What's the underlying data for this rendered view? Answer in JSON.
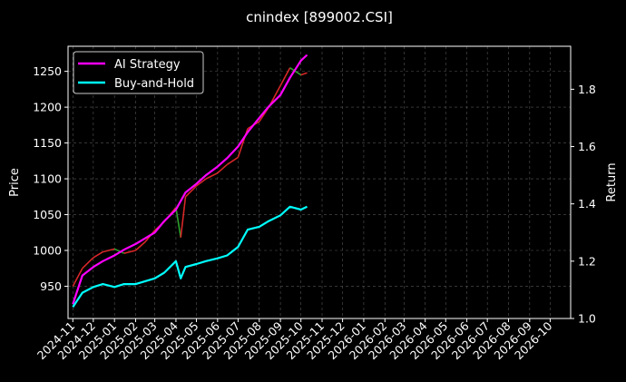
{
  "chart_data": {
    "type": "line",
    "title": "cnindex [899002.CSI]",
    "xlabel": "",
    "ylabel": "Price",
    "y2label": "Return",
    "background": "#000000",
    "grid": true,
    "legend_position": "top-left",
    "xlim": [
      "2024-10-25",
      "2026-10-31"
    ],
    "ylim": [
      905,
      1285
    ],
    "y2lim": [
      1.0,
      1.95
    ],
    "x_ticks": [
      "2024-11",
      "2024-12",
      "2025-01",
      "2025-02",
      "2025-03",
      "2025-04",
      "2025-05",
      "2025-06",
      "2025-07",
      "2025-08",
      "2025-09",
      "2025-10",
      "2025-11",
      "2025-12",
      "2026-01",
      "2026-02",
      "2026-03",
      "2026-04",
      "2026-05",
      "2026-06",
      "2026-07",
      "2026-08",
      "2026-09",
      "2026-10"
    ],
    "y_ticks": [
      950,
      1000,
      1050,
      1100,
      1150,
      1200,
      1250
    ],
    "y2_ticks": [
      "1.0",
      "1.2",
      "1.4",
      "1.6",
      "1.8"
    ],
    "price_series": {
      "name": "Price",
      "up_color": "#d62728",
      "down_color": "#2ca02c",
      "x": [
        "2024-11-01",
        "2024-11-15",
        "2024-12-01",
        "2024-12-15",
        "2025-01-01",
        "2025-01-15",
        "2025-02-01",
        "2025-02-15",
        "2025-03-01",
        "2025-03-15",
        "2025-04-01",
        "2025-04-08",
        "2025-04-15",
        "2025-05-01",
        "2025-05-15",
        "2025-06-01",
        "2025-06-15",
        "2025-07-01",
        "2025-07-15",
        "2025-08-01",
        "2025-08-15",
        "2025-09-01",
        "2025-09-15",
        "2025-10-01",
        "2025-10-10"
      ],
      "values": [
        950,
        975,
        990,
        998,
        1002,
        996,
        1000,
        1012,
        1028,
        1040,
        1060,
        1018,
        1075,
        1090,
        1100,
        1108,
        1120,
        1130,
        1170,
        1180,
        1200,
        1230,
        1255,
        1245,
        1248
      ]
    },
    "series": [
      {
        "name": "AI Strategy",
        "color": "#ff00ff",
        "axis": "right",
        "x": [
          "2024-11-01",
          "2024-11-15",
          "2024-12-01",
          "2024-12-15",
          "2025-01-01",
          "2025-01-15",
          "2025-02-01",
          "2025-02-15",
          "2025-03-01",
          "2025-03-15",
          "2025-04-01",
          "2025-04-15",
          "2025-05-01",
          "2025-05-15",
          "2025-06-01",
          "2025-06-15",
          "2025-07-01",
          "2025-07-15",
          "2025-08-01",
          "2025-08-15",
          "2025-09-01",
          "2025-09-15",
          "2025-10-01",
          "2025-10-10"
        ],
        "values": [
          1.05,
          1.15,
          1.18,
          1.2,
          1.22,
          1.24,
          1.26,
          1.28,
          1.3,
          1.34,
          1.38,
          1.44,
          1.47,
          1.5,
          1.53,
          1.56,
          1.6,
          1.65,
          1.7,
          1.74,
          1.78,
          1.84,
          1.9,
          1.92
        ]
      },
      {
        "name": "Buy-and-Hold",
        "color": "#00ffff",
        "axis": "right",
        "x": [
          "2024-11-01",
          "2024-11-15",
          "2024-12-01",
          "2024-12-15",
          "2025-01-01",
          "2025-01-15",
          "2025-02-01",
          "2025-02-15",
          "2025-03-01",
          "2025-03-15",
          "2025-04-01",
          "2025-04-08",
          "2025-04-15",
          "2025-05-01",
          "2025-05-15",
          "2025-06-01",
          "2025-06-15",
          "2025-07-01",
          "2025-07-15",
          "2025-08-01",
          "2025-08-15",
          "2025-09-01",
          "2025-09-15",
          "2025-10-01",
          "2025-10-10"
        ],
        "values": [
          1.04,
          1.09,
          1.11,
          1.12,
          1.11,
          1.12,
          1.12,
          1.13,
          1.14,
          1.16,
          1.2,
          1.14,
          1.18,
          1.19,
          1.2,
          1.21,
          1.22,
          1.25,
          1.31,
          1.32,
          1.34,
          1.36,
          1.39,
          1.38,
          1.39
        ]
      }
    ]
  }
}
